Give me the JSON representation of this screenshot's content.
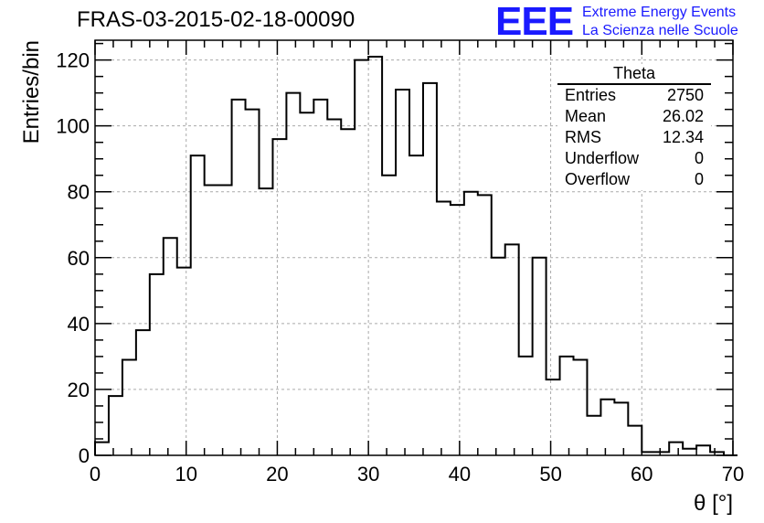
{
  "header": {
    "title": "FRAS-03-2015-02-18-00090",
    "logo": "EEE",
    "logo_line1": "Extreme Energy Events",
    "logo_line2": "La Scienza nelle Scuole"
  },
  "stats_box": {
    "title": "Theta",
    "rows": [
      {
        "label": "Entries",
        "value": "2750"
      },
      {
        "label": "Mean",
        "value": "26.02"
      },
      {
        "label": "RMS",
        "value": "12.34"
      },
      {
        "label": "Underflow",
        "value": "0"
      },
      {
        "label": "Overflow",
        "value": "0"
      }
    ]
  },
  "chart_data": {
    "type": "histogram",
    "xlabel": "θ [°]",
    "ylabel": "Entries/bin",
    "xlim": [
      0,
      70
    ],
    "ylim": [
      0,
      126
    ],
    "xticks": [
      0,
      10,
      20,
      30,
      40,
      50,
      60,
      70
    ],
    "yticks": [
      0,
      20,
      40,
      60,
      80,
      100,
      120
    ],
    "grid": true,
    "bin_width": 1.5,
    "bin_start": 0,
    "values": [
      4,
      18,
      29,
      38,
      55,
      66,
      57,
      91,
      82,
      82,
      108,
      105,
      81,
      96,
      110,
      104,
      108,
      102,
      99,
      120,
      121,
      85,
      111,
      91,
      113,
      77,
      76,
      80,
      79,
      60,
      64,
      30,
      60,
      23,
      30,
      29,
      12,
      17,
      16,
      9,
      1,
      1,
      4,
      2,
      3,
      1,
      0
    ]
  }
}
